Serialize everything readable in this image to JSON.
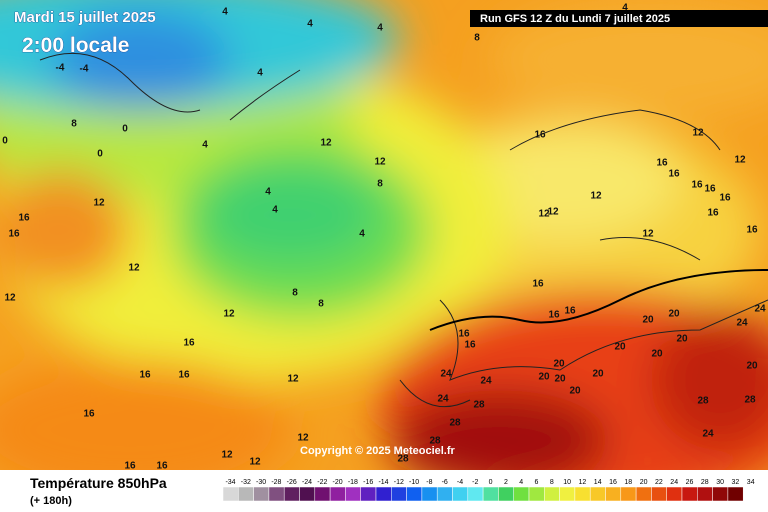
{
  "header": {
    "date": "Mardi 15 juillet 2025",
    "time": "2:00 locale",
    "run": "Run GFS 12 Z du Lundi 7 juillet 2025"
  },
  "copyright": "Copyright © 2025 Meteociel.fr",
  "footer": {
    "title": "Température 850hPa",
    "lead": "(+ 180h)"
  },
  "scale": {
    "labels": [
      -34,
      -32,
      -30,
      -28,
      -26,
      -24,
      -22,
      -20,
      -18,
      -16,
      -14,
      -12,
      -10,
      -8,
      -6,
      -4,
      -2,
      0,
      2,
      4,
      6,
      8,
      10,
      12,
      14,
      16,
      18,
      20,
      22,
      24,
      26,
      28,
      30,
      32,
      34
    ]
  },
  "isotherm_labels": [
    4,
    4,
    4,
    4,
    8,
    -4,
    -4,
    4,
    8,
    0,
    0,
    4,
    0,
    16,
    12,
    12,
    12,
    16,
    16,
    12,
    8,
    4,
    4,
    12,
    16,
    16,
    12,
    16,
    16,
    16,
    12,
    12,
    16,
    4,
    12,
    16,
    12,
    12,
    8,
    8,
    12,
    16,
    16,
    16,
    20,
    20,
    24,
    24,
    16,
    16,
    16,
    20,
    20,
    20,
    24,
    24,
    20,
    20,
    20,
    20,
    20,
    20,
    16,
    16,
    12,
    24,
    28,
    28,
    28,
    16,
    28,
    24,
    12,
    28,
    28,
    12,
    12,
    16,
    16
  ]
}
